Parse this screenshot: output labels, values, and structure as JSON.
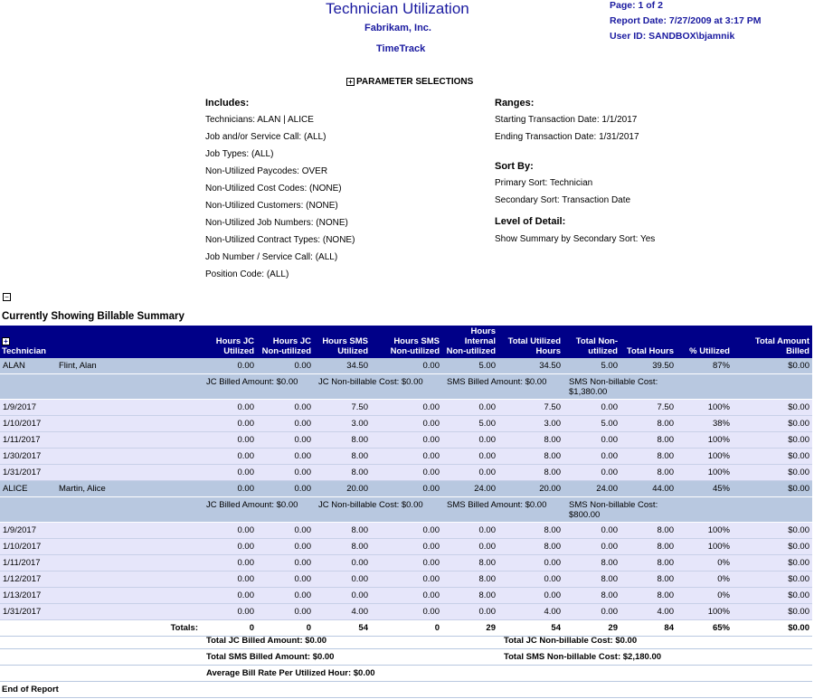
{
  "header": {
    "title": "Technician Utilization",
    "company": "Fabrikam, Inc.",
    "app": "TimeTrack",
    "page": "Page: 1 of 2",
    "report_date": "Report Date: 7/27/2009 at 3:17 PM",
    "user_id": "User ID: SANDBOX\\bjamnik"
  },
  "parameters": {
    "toggle_label": "PARAMETER SELECTIONS",
    "includes_heading": "Includes:",
    "includes": [
      "Technicians: ALAN | ALICE",
      "Job and/or Service Call: (ALL)",
      "Job Types: (ALL)",
      "Non-Utilized Paycodes: OVER",
      "Non-Utilized Cost Codes: (NONE)",
      "Non-Utilized Customers: (NONE)",
      "Non-Utilized Job Numbers: (NONE)",
      "Non-Utilized Contract Types: (NONE)",
      "Job Number / Service Call: (ALL)",
      "Position Code: (ALL)"
    ],
    "ranges_heading": "Ranges:",
    "ranges": [
      "Starting Transaction Date: 1/1/2017",
      "Ending Transaction Date: 1/31/2017"
    ],
    "sort_heading": "Sort By:",
    "sort": [
      "Primary Sort: Technician",
      "Secondary Sort: Transaction Date"
    ],
    "detail_heading": "Level of Detail:",
    "detail": [
      "Show Summary by Secondary Sort: Yes"
    ]
  },
  "section_title": "Currently Showing Billable Summary",
  "table": {
    "columns": [
      "Technician",
      "",
      "Hours JC Utilized",
      "Hours JC Non-utilized",
      "Hours SMS Utilized",
      "Hours SMS Non-utilized",
      "Hours Internal Non-utilized",
      "Total Utilized Hours",
      "Total Non-utilized",
      "Total Hours",
      "% Utilized",
      "Total Amount Billed"
    ],
    "groups": [
      {
        "tech": [
          "ALAN",
          "Flint, Alan",
          "0.00",
          "0.00",
          "34.50",
          "0.00",
          "5.00",
          "34.50",
          "5.00",
          "39.50",
          "87%",
          "$0.00"
        ],
        "summary": [
          "JC Billed Amount: $0.00",
          "JC Non-billable Cost: $0.00",
          "SMS Billed Amount: $0.00",
          "SMS Non-billable Cost: $1,380.00"
        ],
        "rows": [
          [
            "1/9/2017",
            "",
            "0.00",
            "0.00",
            "7.50",
            "0.00",
            "0.00",
            "7.50",
            "0.00",
            "7.50",
            "100%",
            "$0.00"
          ],
          [
            "1/10/2017",
            "",
            "0.00",
            "0.00",
            "3.00",
            "0.00",
            "5.00",
            "3.00",
            "5.00",
            "8.00",
            "38%",
            "$0.00"
          ],
          [
            "1/11/2017",
            "",
            "0.00",
            "0.00",
            "8.00",
            "0.00",
            "0.00",
            "8.00",
            "0.00",
            "8.00",
            "100%",
            "$0.00"
          ],
          [
            "1/30/2017",
            "",
            "0.00",
            "0.00",
            "8.00",
            "0.00",
            "0.00",
            "8.00",
            "0.00",
            "8.00",
            "100%",
            "$0.00"
          ],
          [
            "1/31/2017",
            "",
            "0.00",
            "0.00",
            "8.00",
            "0.00",
            "0.00",
            "8.00",
            "0.00",
            "8.00",
            "100%",
            "$0.00"
          ]
        ]
      },
      {
        "tech": [
          "ALICE",
          "Martin, Alice",
          "0.00",
          "0.00",
          "20.00",
          "0.00",
          "24.00",
          "20.00",
          "24.00",
          "44.00",
          "45%",
          "$0.00"
        ],
        "summary": [
          "JC Billed Amount: $0.00",
          "JC Non-billable Cost: $0.00",
          "SMS Billed Amount: $0.00",
          "SMS Non-billable Cost: $800.00"
        ],
        "rows": [
          [
            "1/9/2017",
            "",
            "0.00",
            "0.00",
            "8.00",
            "0.00",
            "0.00",
            "8.00",
            "0.00",
            "8.00",
            "100%",
            "$0.00"
          ],
          [
            "1/10/2017",
            "",
            "0.00",
            "0.00",
            "8.00",
            "0.00",
            "0.00",
            "8.00",
            "0.00",
            "8.00",
            "100%",
            "$0.00"
          ],
          [
            "1/11/2017",
            "",
            "0.00",
            "0.00",
            "0.00",
            "0.00",
            "8.00",
            "0.00",
            "8.00",
            "8.00",
            "0%",
            "$0.00"
          ],
          [
            "1/12/2017",
            "",
            "0.00",
            "0.00",
            "0.00",
            "0.00",
            "8.00",
            "0.00",
            "8.00",
            "8.00",
            "0%",
            "$0.00"
          ],
          [
            "1/13/2017",
            "",
            "0.00",
            "0.00",
            "0.00",
            "0.00",
            "8.00",
            "0.00",
            "8.00",
            "8.00",
            "0%",
            "$0.00"
          ],
          [
            "1/31/2017",
            "",
            "0.00",
            "0.00",
            "4.00",
            "0.00",
            "0.00",
            "4.00",
            "0.00",
            "4.00",
            "100%",
            "$0.00"
          ]
        ]
      }
    ],
    "totals": [
      "",
      "Totals:",
      "0",
      "0",
      "54",
      "0",
      "29",
      "54",
      "29",
      "84",
      "65%",
      "$0.00"
    ]
  },
  "footer": {
    "jc_billed": "Total JC Billed Amount: $0.00",
    "jc_nonbillable": "Total JC Non-billable Cost: $0.00",
    "sms_billed": "Total SMS Billed Amount: $0.00",
    "sms_nonbillable": "Total SMS Non-billable Cost: $2,180.00",
    "avg_rate": "Average Bill Rate Per Utilized Hour: $0.00",
    "end": "End of Report"
  },
  "colors": {
    "header_bg": "#000088",
    "title": "#1a1aa0",
    "tech_row": "#b8c8e0",
    "date_row": "#e6e6fa"
  }
}
